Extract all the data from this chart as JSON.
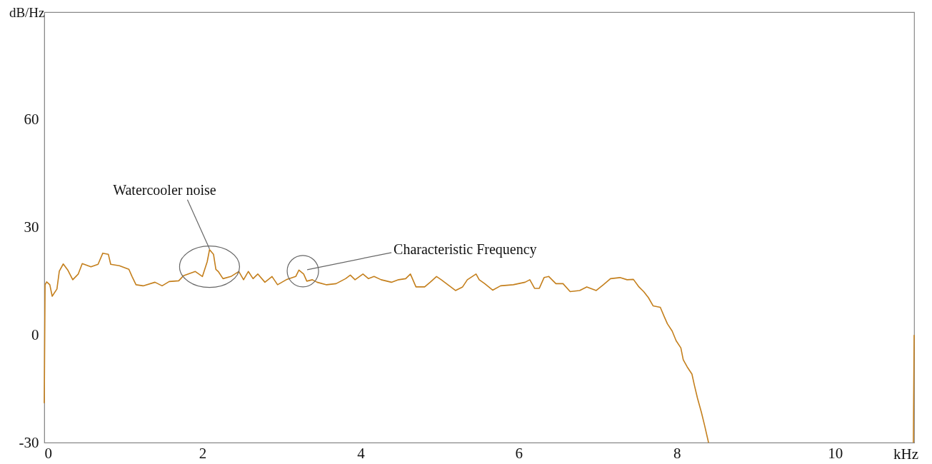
{
  "chart_data": {
    "type": "line",
    "xlabel": "kHz",
    "ylabel": "dB/Hz",
    "xlim": [
      0,
      11
    ],
    "ylim": [
      -30,
      90
    ],
    "xticks": [
      0,
      2,
      4,
      6,
      8,
      10
    ],
    "yticks": [
      -30,
      0,
      30,
      60
    ],
    "grid": false,
    "marker": "none",
    "line_style": "solid",
    "annotations": [
      {
        "text": "Watercooler noise",
        "x": 2.09,
        "y": 23.8
      },
      {
        "text": "Characteristic Frequency",
        "x": 3.27,
        "y": 17.8
      }
    ],
    "series": [
      {
        "color": "#c47f1c",
        "x": [
          0,
          0.01,
          0.03,
          0.07,
          0.1,
          0.16,
          0.19,
          0.24,
          0.3,
          0.36,
          0.43,
          0.48,
          0.59,
          0.68,
          0.74,
          0.81,
          0.84,
          0.95,
          1.07,
          1.11,
          1.16,
          1.25,
          1.4,
          1.49,
          1.58,
          1.7,
          1.76,
          1.91,
          2.0,
          2.06,
          2.09,
          2.14,
          2.17,
          2.2,
          2.26,
          2.36,
          2.46,
          2.52,
          2.58,
          2.64,
          2.7,
          2.79,
          2.88,
          2.95,
          3.06,
          3.18,
          3.22,
          3.28,
          3.32,
          3.39,
          3.45,
          3.57,
          3.69,
          3.81,
          3.87,
          3.93,
          4.03,
          4.1,
          4.17,
          4.26,
          4.39,
          4.48,
          4.57,
          4.63,
          4.7,
          4.81,
          4.88,
          4.96,
          5.02,
          5.14,
          5.2,
          5.29,
          5.35,
          5.46,
          5.5,
          5.57,
          5.67,
          5.77,
          5.93,
          6.08,
          6.14,
          6.2,
          6.26,
          6.32,
          6.38,
          6.47,
          6.56,
          6.65,
          6.77,
          6.86,
          6.98,
          7.07,
          7.16,
          7.28,
          7.37,
          7.45,
          7.52,
          7.58,
          7.64,
          7.7,
          7.79,
          7.84,
          7.88,
          7.94,
          7.99,
          8.05,
          8.08,
          8.13,
          8.19,
          8.22,
          8.26,
          8.31,
          8.35,
          8.4,
          9.7,
          10.99,
          11.0
        ],
        "values": [
          -19,
          14,
          14.8,
          14,
          10.8,
          12.8,
          17.8,
          19.8,
          18,
          15.4,
          17,
          19.9,
          19,
          19.7,
          22.8,
          22.5,
          19.7,
          19.3,
          18.3,
          16.3,
          14,
          13.7,
          14.7,
          13.7,
          14.9,
          15.1,
          16.5,
          17.7,
          16.3,
          20.4,
          23.8,
          22.5,
          18.3,
          17.7,
          15.7,
          16.3,
          17.7,
          15.4,
          17.7,
          15.7,
          17,
          14.7,
          16.3,
          14,
          15.4,
          16.3,
          18.1,
          17,
          15,
          15.4,
          14.7,
          14,
          14.3,
          15.7,
          16.7,
          15.4,
          17,
          15.7,
          16.3,
          15.4,
          14.7,
          15.4,
          15.7,
          17,
          13.4,
          13.4,
          14.7,
          16.3,
          15.4,
          13.4,
          12.4,
          13.4,
          15.4,
          17,
          15.4,
          14.3,
          12.5,
          13.7,
          14,
          14.7,
          15.4,
          13,
          13,
          16,
          16.3,
          14.3,
          14.3,
          12.1,
          12.4,
          13.4,
          12.4,
          14,
          15.7,
          16,
          15.4,
          15.5,
          13.4,
          12.1,
          10.4,
          8.1,
          7.7,
          5.1,
          3.1,
          1.1,
          -1.6,
          -3.6,
          -6.9,
          -8.9,
          -10.9,
          -13.9,
          -17.6,
          -21.6,
          -25.2,
          -30,
          null,
          -30,
          0
        ]
      }
    ]
  }
}
